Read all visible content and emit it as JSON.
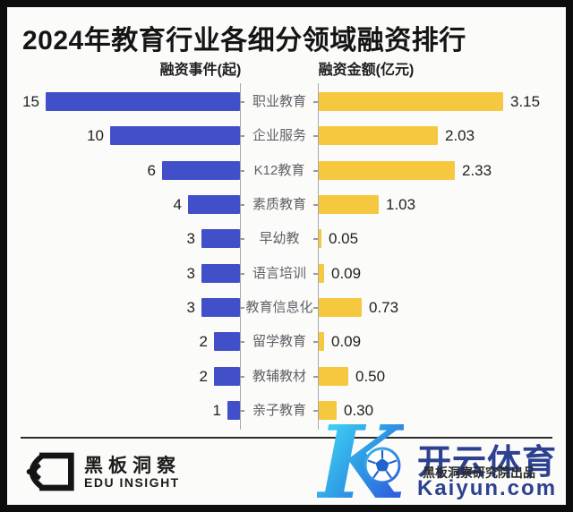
{
  "title": "2024年教育行业各细分领域融资排行",
  "chart_data": {
    "type": "bar",
    "variant": "bidirectional-horizontal-tornado",
    "title": "2024年教育行业各细分领域融资排行",
    "left_header": "融资事件(起)",
    "right_header": "融资金额(亿元)",
    "categories": [
      "职业教育",
      "企业服务",
      "K12教育",
      "素质教育",
      "早幼教",
      "语言培训",
      "教育信息化",
      "留学教育",
      "教辅教材",
      "亲子教育"
    ],
    "series": [
      {
        "name": "融资事件(起)",
        "side": "left",
        "color": "#4150C8",
        "axis_max": 15,
        "values": [
          15,
          10,
          6,
          4,
          3,
          3,
          3,
          2,
          2,
          1
        ],
        "labels": [
          "15",
          "10",
          "6",
          "4",
          "3",
          "3",
          "3",
          "2",
          "2",
          "1"
        ]
      },
      {
        "name": "融资金额(亿元)",
        "side": "right",
        "color": "#F5C83F",
        "axis_max": 3.15,
        "values": [
          3.15,
          2.03,
          2.33,
          1.03,
          0.05,
          0.09,
          0.73,
          0.09,
          0.5,
          0.3
        ],
        "labels": [
          "3.15",
          "2.03",
          "2.33",
          "1.03",
          "0.05",
          "0.09",
          "0.73",
          "0.09",
          "0.50",
          "0.30"
        ]
      }
    ],
    "grid": false,
    "legend_position": "column-headers-top"
  },
  "footer": {
    "brand_cn": "黑板洞察",
    "brand_en": "EDU INSIGHT"
  },
  "watermark": {
    "letter": "K",
    "brand": "开云体育",
    "byline": "黑板洞察研究院出品",
    "domain": "Kaiyun.com",
    "accent_blue": "#2d4190",
    "gradient_start": "#3ecdf2",
    "gradient_end": "#2f62dd"
  }
}
